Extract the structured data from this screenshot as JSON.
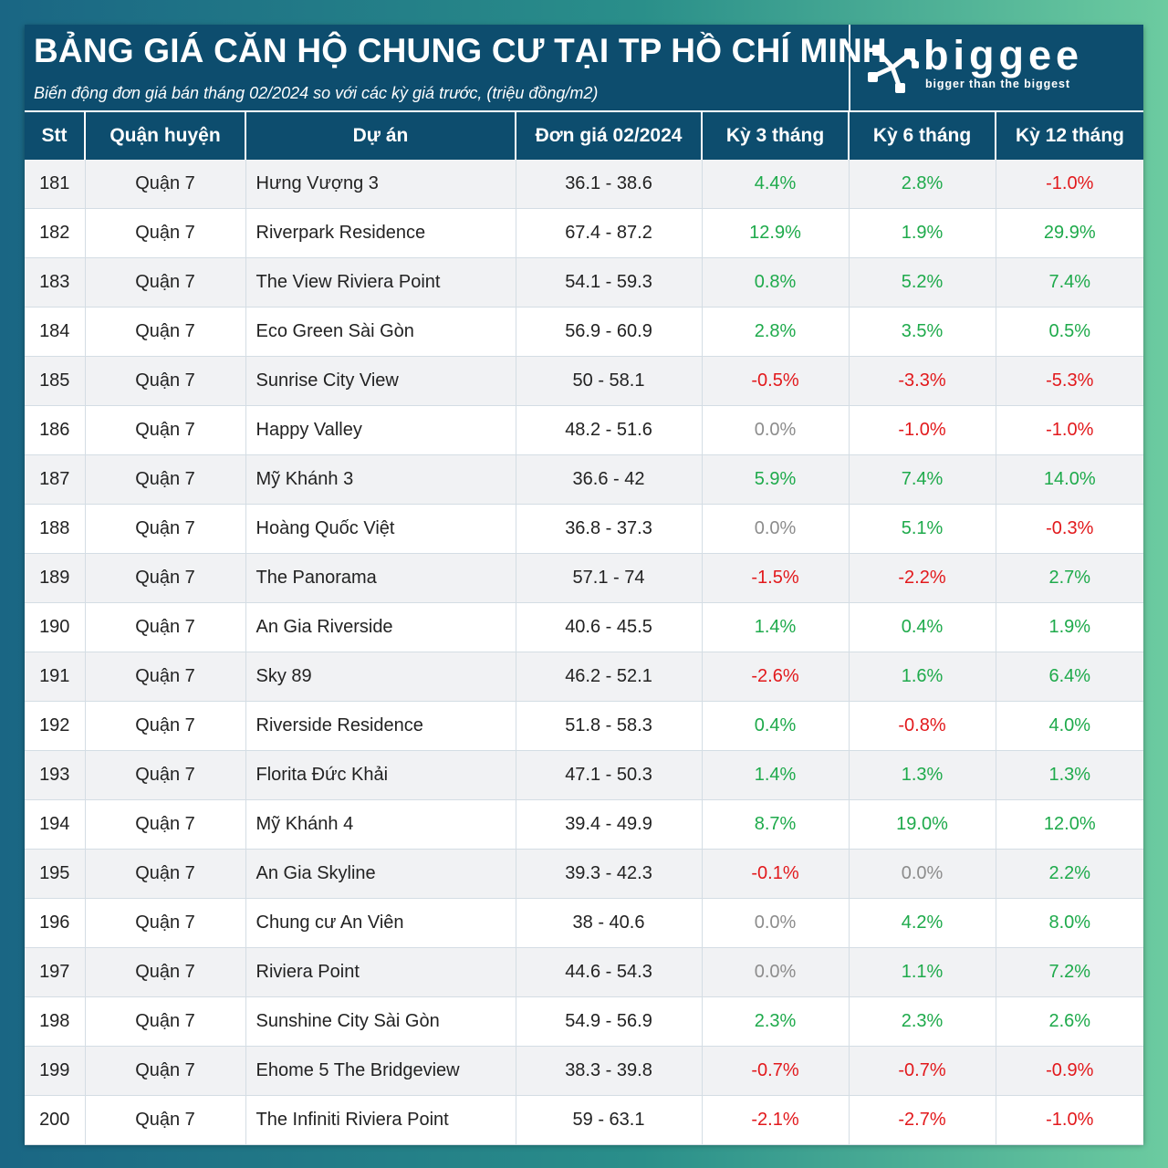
{
  "header": {
    "title": "BẢNG GIÁ CĂN HỘ CHUNG CƯ TẠI TP HỒ CHÍ MINH",
    "subtitle": "Biến động đơn giá bán tháng 02/2024 so với các kỳ giá trước, (triệu đồng/m2)"
  },
  "logo": {
    "icon": "biggee-logo-mark",
    "word": "biggee",
    "tagline": "bigger than the biggest"
  },
  "colors": {
    "header_bg": "#0d4d6e",
    "positive": "#1eaa4b",
    "negative": "#e2191c",
    "neutral": "#8c8c8c"
  },
  "table": {
    "columns": [
      "Stt",
      "Quận huyện",
      "Dự án",
      "Đơn giá 02/2024",
      "Kỳ 3 tháng",
      "Kỳ 6 tháng",
      "Kỳ 12 tháng"
    ],
    "rows": [
      {
        "stt": "181",
        "district": "Quận 7",
        "project": "Hưng Vượng 3",
        "price": "36.1 - 38.6",
        "m3": "4.4%",
        "m6": "2.8%",
        "m12": "-1.0%"
      },
      {
        "stt": "182",
        "district": "Quận 7",
        "project": "Riverpark Residence",
        "price": "67.4 - 87.2",
        "m3": "12.9%",
        "m6": "1.9%",
        "m12": "29.9%"
      },
      {
        "stt": "183",
        "district": "Quận 7",
        "project": "The View Riviera Point",
        "price": "54.1 - 59.3",
        "m3": "0.8%",
        "m6": "5.2%",
        "m12": "7.4%"
      },
      {
        "stt": "184",
        "district": "Quận 7",
        "project": "Eco Green Sài Gòn",
        "price": "56.9 - 60.9",
        "m3": "2.8%",
        "m6": "3.5%",
        "m12": "0.5%"
      },
      {
        "stt": "185",
        "district": "Quận 7",
        "project": "Sunrise City View",
        "price": "50 - 58.1",
        "m3": "-0.5%",
        "m6": "-3.3%",
        "m12": "-5.3%"
      },
      {
        "stt": "186",
        "district": "Quận 7",
        "project": "Happy Valley",
        "price": "48.2 - 51.6",
        "m3": "0.0%",
        "m6": "-1.0%",
        "m12": "-1.0%"
      },
      {
        "stt": "187",
        "district": "Quận 7",
        "project": "Mỹ Khánh 3",
        "price": "36.6 - 42",
        "m3": "5.9%",
        "m6": "7.4%",
        "m12": "14.0%"
      },
      {
        "stt": "188",
        "district": "Quận 7",
        "project": "Hoàng Quốc Việt",
        "price": "36.8 - 37.3",
        "m3": "0.0%",
        "m6": "5.1%",
        "m12": "-0.3%"
      },
      {
        "stt": "189",
        "district": "Quận 7",
        "project": "The Panorama",
        "price": "57.1 - 74",
        "m3": "-1.5%",
        "m6": "-2.2%",
        "m12": "2.7%"
      },
      {
        "stt": "190",
        "district": "Quận 7",
        "project": "An Gia Riverside",
        "price": "40.6 - 45.5",
        "m3": "1.4%",
        "m6": "0.4%",
        "m12": "1.9%"
      },
      {
        "stt": "191",
        "district": "Quận 7",
        "project": "Sky 89",
        "price": "46.2 - 52.1",
        "m3": "-2.6%",
        "m6": "1.6%",
        "m12": "6.4%"
      },
      {
        "stt": "192",
        "district": "Quận 7",
        "project": "Riverside Residence",
        "price": "51.8 - 58.3",
        "m3": "0.4%",
        "m6": "-0.8%",
        "m12": "4.0%"
      },
      {
        "stt": "193",
        "district": "Quận 7",
        "project": "Florita Đức Khải",
        "price": "47.1 - 50.3",
        "m3": "1.4%",
        "m6": "1.3%",
        "m12": "1.3%"
      },
      {
        "stt": "194",
        "district": "Quận 7",
        "project": "Mỹ Khánh 4",
        "price": "39.4 - 49.9",
        "m3": "8.7%",
        "m6": "19.0%",
        "m12": "12.0%"
      },
      {
        "stt": "195",
        "district": "Quận 7",
        "project": "An Gia Skyline",
        "price": "39.3 - 42.3",
        "m3": "-0.1%",
        "m6": "0.0%",
        "m12": "2.2%"
      },
      {
        "stt": "196",
        "district": "Quận 7",
        "project": "Chung cư An Viên",
        "price": "38 - 40.6",
        "m3": "0.0%",
        "m6": "4.2%",
        "m12": "8.0%"
      },
      {
        "stt": "197",
        "district": "Quận 7",
        "project": "Riviera Point",
        "price": "44.6 - 54.3",
        "m3": "0.0%",
        "m6": "1.1%",
        "m12": "7.2%"
      },
      {
        "stt": "198",
        "district": "Quận 7",
        "project": "Sunshine City Sài Gòn",
        "price": "54.9 - 56.9",
        "m3": "2.3%",
        "m6": "2.3%",
        "m12": "2.6%"
      },
      {
        "stt": "199",
        "district": "Quận 7",
        "project": "Ehome 5 The Bridgeview",
        "price": "38.3 - 39.8",
        "m3": "-0.7%",
        "m6": "-0.7%",
        "m12": "-0.9%"
      },
      {
        "stt": "200",
        "district": "Quận 7",
        "project": "The Infiniti Riviera Point",
        "price": "59 - 63.1",
        "m3": "-2.1%",
        "m6": "-2.7%",
        "m12": "-1.0%"
      }
    ]
  }
}
